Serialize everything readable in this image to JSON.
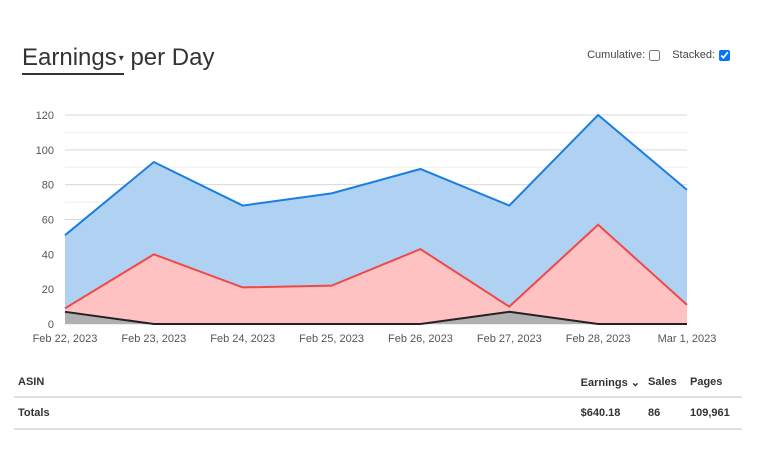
{
  "header": {
    "metric": "Earnings",
    "metric_caret": "▾",
    "suffix": "per Day",
    "cumulative_label": "Cumulative:",
    "cumulative_checked": false,
    "stacked_label": "Stacked:",
    "stacked_checked": true
  },
  "chart_data": {
    "type": "area",
    "stacked": true,
    "categories": [
      "Feb 22, 2023",
      "Feb 23, 2023",
      "Feb 24, 2023",
      "Feb 25, 2023",
      "Feb 26, 2023",
      "Feb 27, 2023",
      "Feb 28, 2023",
      "Mar 1, 2023"
    ],
    "yticks": [
      "0",
      "20",
      "40",
      "60",
      "80",
      "100",
      "120"
    ],
    "ylim": [
      0,
      120
    ],
    "grid": true,
    "series": [
      {
        "values": [
          7,
          0,
          0,
          0,
          0,
          7,
          0,
          0
        ],
        "color": "#222222",
        "fill": "#b0b0b0"
      },
      {
        "values": [
          2,
          40,
          21,
          22,
          43,
          3,
          57,
          11
        ],
        "color": "#f04848",
        "fill": "#ffc2c2"
      },
      {
        "values": [
          42,
          53,
          47,
          53,
          46,
          58,
          63,
          66
        ],
        "color": "#1a7ee0",
        "fill": "#b0d2f2"
      }
    ]
  },
  "table": {
    "headers": {
      "asin": "ASIN",
      "earnings": "Earnings",
      "earnings_sort": "⌄",
      "sales": "Sales",
      "pages": "Pages"
    },
    "totals": {
      "label": "Totals",
      "earnings": "$640.18",
      "sales": "86",
      "pages": "109,961"
    }
  }
}
